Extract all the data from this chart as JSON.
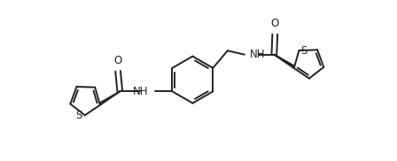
{
  "bg_color": "#ffffff",
  "line_color": "#222222",
  "line_width": 1.4,
  "font_size": 8.5,
  "figsize": [
    4.48,
    1.82
  ],
  "dpi": 100,
  "xlim": [
    0,
    10
  ],
  "ylim": [
    0,
    4.06
  ]
}
